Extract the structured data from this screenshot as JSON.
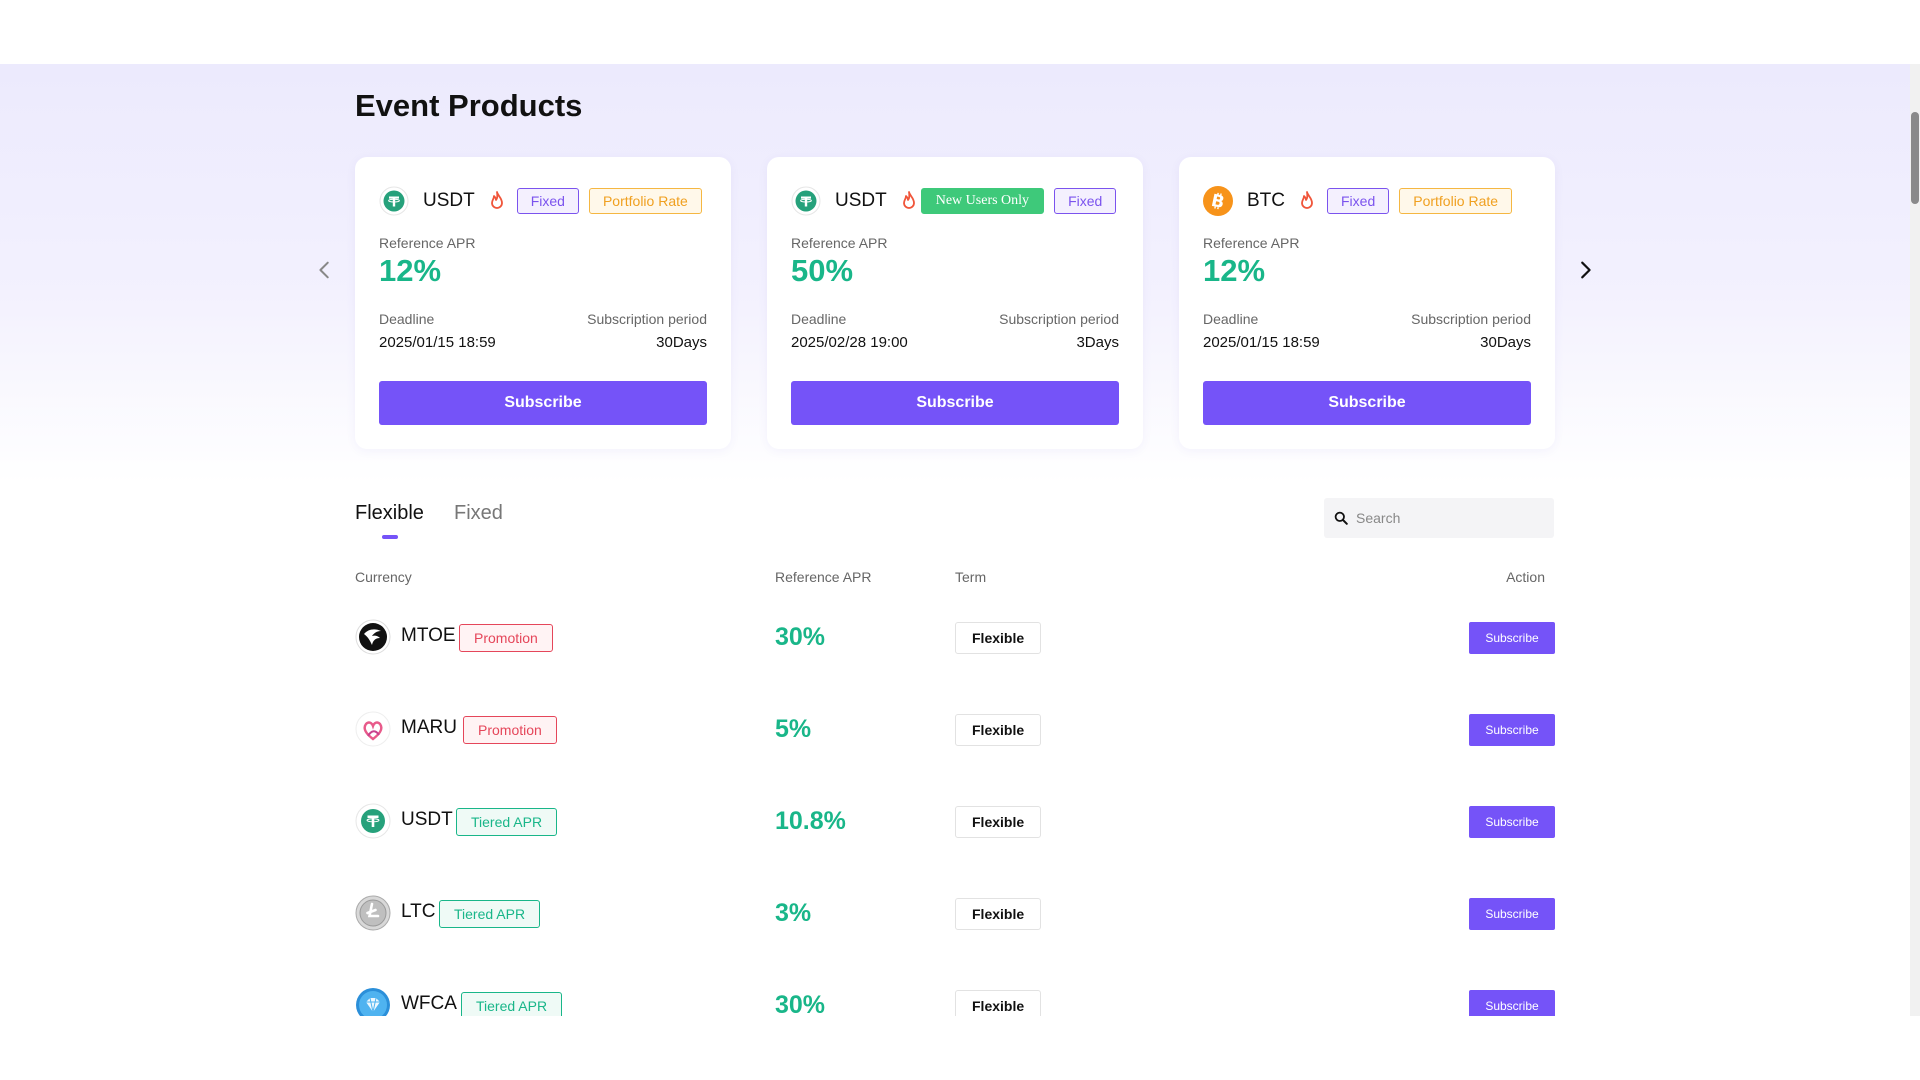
{
  "section": {
    "title": "Event Products"
  },
  "cards": [
    {
      "coin": "USDT",
      "icon": "tether-icon",
      "tags": [
        "Fixed",
        "Portfolio Rate"
      ],
      "apr_label": "Reference APR",
      "apr": "12%",
      "deadline_label": "Deadline",
      "deadline": "2025/01/15 18:59",
      "period_label": "Subscription period",
      "period": "30Days",
      "button": "Subscribe"
    },
    {
      "coin": "USDT",
      "icon": "tether-icon",
      "tags": [
        "New Users Only",
        "Fixed"
      ],
      "apr_label": "Reference APR",
      "apr": "50%",
      "deadline_label": "Deadline",
      "deadline": "2025/02/28 19:00",
      "period_label": "Subscription period",
      "period": "3Days",
      "button": "Subscribe"
    },
    {
      "coin": "BTC",
      "icon": "bitcoin-icon",
      "tags": [
        "Fixed",
        "Portfolio Rate"
      ],
      "apr_label": "Reference APR",
      "apr": "12%",
      "deadline_label": "Deadline",
      "deadline": "2025/01/15 18:59",
      "period_label": "Subscription period",
      "period": "30Days",
      "button": "Subscribe"
    }
  ],
  "tabs": [
    {
      "label": "Flexible",
      "active": true
    },
    {
      "label": "Fixed",
      "active": false
    }
  ],
  "search": {
    "placeholder": "Search"
  },
  "table": {
    "headers": {
      "currency": "Currency",
      "apr": "Reference APR",
      "term": "Term",
      "action": "Action"
    },
    "rows": [
      {
        "coin": "MTOE",
        "icon": "mtoe-icon",
        "tag": "Promotion",
        "apr": "30%",
        "term": "Flexible",
        "button": "Subscribe"
      },
      {
        "coin": "MARU",
        "icon": "maru-icon",
        "tag": "Promotion",
        "apr": "5%",
        "term": "Flexible",
        "button": "Subscribe"
      },
      {
        "coin": "USDT",
        "icon": "tether-icon",
        "tag": "Tiered APR",
        "apr": "10.8%",
        "term": "Flexible",
        "button": "Subscribe"
      },
      {
        "coin": "LTC",
        "icon": "litecoin-icon",
        "tag": "Tiered APR",
        "apr": "3%",
        "term": "Flexible",
        "button": "Subscribe"
      },
      {
        "coin": "WFCA",
        "icon": "wfca-icon",
        "tag": "Tiered APR",
        "apr": "30%",
        "term": "Flexible",
        "button": "Subscribe"
      }
    ]
  },
  "colors": {
    "accent": "#7553f8",
    "apr": "#19b689",
    "promotion": "#e5465a",
    "tiered": "#19b689",
    "portfolio": "#f0a020",
    "new_users": "#3ec97a"
  }
}
